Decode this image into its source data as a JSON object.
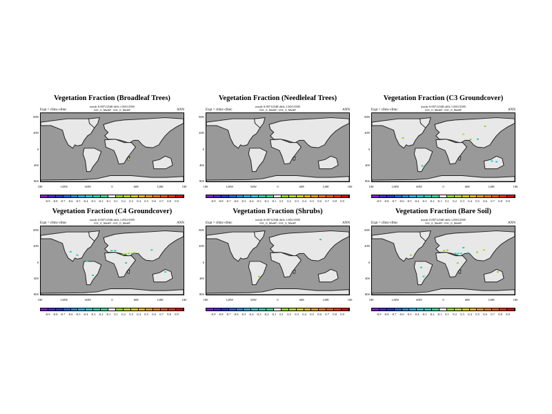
{
  "chart_data": {
    "type": "heatmap",
    "expt_label": "Expt = cllmc-cllmc",
    "stats_line": "rmsdc 0.00712548 diffs 1.00113585",
    "case_line": "031_0_MeSP - 031_0_MeSP",
    "season": "ANN",
    "lat_ticks": [
      "80N",
      "40N",
      "0",
      "40S",
      "80S"
    ],
    "lat_values": [
      80,
      40,
      0,
      -40,
      -80
    ],
    "lon_ticks": [
      "180",
      "120W",
      "60W",
      "0",
      "60E",
      "120E",
      "180"
    ],
    "lon_values": [
      -180,
      -120,
      -60,
      0,
      60,
      120,
      180
    ],
    "colorbar_labels": [
      "-0.9",
      "-0.8",
      "-0.7",
      "-0.6",
      "-0.5",
      "-0.4",
      "-0.3",
      "-0.2",
      "-0.1",
      "0.1",
      "0.2",
      "0.3",
      "0.4",
      "0.5",
      "0.6",
      "0.7",
      "0.8",
      "0.9"
    ],
    "colorbar_colors": [
      "#7a1fd0",
      "#4a22dc",
      "#2236d2",
      "#1e64e0",
      "#1a8ee0",
      "#20b0e0",
      "#20c8d8",
      "#20d0b0",
      "#30d890",
      "#ffffff",
      "#90d820",
      "#b8d820",
      "#d8d000",
      "#e8b800",
      "#e89a00",
      "#e87800",
      "#e85a00",
      "#e83000",
      "#e00000"
    ],
    "land_color": "#e8e8e8",
    "ocean_color": "#999999",
    "panels": [
      {
        "title": "Vegetation Fraction (Broadleaf Trees)",
        "anomalies": [
          {
            "lon": 41.8,
            "lat": -26,
            "value": 0.2
          }
        ]
      },
      {
        "title": "Vegetation Fraction (Needleleaf Trees)",
        "anomalies": []
      },
      {
        "title": "Vegetation Fraction (C3 Groundcover)",
        "anomalies": [
          {
            "lon": 50.4,
            "lat": 38.5,
            "value": 0.3
          },
          {
            "lon": 105,
            "lat": 58.7,
            "value": 0.2
          },
          {
            "lon": 68.8,
            "lat": 25.3,
            "value": 0.15
          },
          {
            "lon": 86.7,
            "lat": 25.9,
            "value": -0.2
          },
          {
            "lon": -102,
            "lat": 28.8,
            "value": 0.2
          },
          {
            "lon": -53.3,
            "lat": -42,
            "value": -0.2
          },
          {
            "lon": 122.4,
            "lat": -29.9,
            "value": -0.3
          },
          {
            "lon": 134,
            "lat": -31.6,
            "value": -0.3
          }
        ]
      },
      {
        "title": "Vegetation Fraction (C4 Groundcover)",
        "anomalies": [
          {
            "lon": -1.4,
            "lat": 30.3,
            "value": -0.2
          },
          {
            "lon": 7.2,
            "lat": 30.3,
            "value": -0.2
          },
          {
            "lon": 27.4,
            "lat": 21.7,
            "value": 0.2
          },
          {
            "lon": 34,
            "lat": 22,
            "value": 0.2
          },
          {
            "lon": 41.8,
            "lat": 22.8,
            "value": 0.2
          },
          {
            "lon": 50,
            "lat": 23.5,
            "value": 0.2
          },
          {
            "lon": 56.2,
            "lat": 24.6,
            "value": 0.2
          },
          {
            "lon": 99.4,
            "lat": 32,
            "value": -0.2
          },
          {
            "lon": 34.8,
            "lat": -1.1,
            "value": -0.2
          },
          {
            "lon": -63,
            "lat": 3.4,
            "value": -0.2
          },
          {
            "lon": -48.7,
            "lat": -32.6,
            "value": -0.2
          },
          {
            "lon": 134,
            "lat": -24,
            "value": -0.2
          },
          {
            "lon": -105,
            "lat": 27.4,
            "value": -0.2
          },
          {
            "lon": -88,
            "lat": 18.8,
            "value": -0.2
          }
        ]
      },
      {
        "title": "Vegetation Fraction (Shrubs)",
        "anomalies": [
          {
            "lon": 107.6,
            "lat": 58.5,
            "value": -0.2
          },
          {
            "lon": -47,
            "lat": -36,
            "value": 0.2
          }
        ]
      },
      {
        "title": "Vegetation Fraction (Bare Soil)",
        "anomalies": [
          {
            "lon": 1.4,
            "lat": 30.3,
            "value": 0.2
          },
          {
            "lon": 10,
            "lat": 31.4,
            "value": 0.2
          },
          {
            "lon": 50.4,
            "lat": 37.7,
            "value": -0.3
          },
          {
            "lon": 30.2,
            "lat": 22.8,
            "value": -0.2
          },
          {
            "lon": 37,
            "lat": 22.8,
            "value": -0.2
          },
          {
            "lon": 44.6,
            "lat": 22.8,
            "value": -0.2
          },
          {
            "lon": 61.9,
            "lat": 24.6,
            "value": -0.2
          },
          {
            "lon": 85,
            "lat": 26.3,
            "value": 0.2
          },
          {
            "lon": 102,
            "lat": 32,
            "value": 0.3
          },
          {
            "lon": 36,
            "lat": -1.1,
            "value": 0.2
          },
          {
            "lon": -82,
            "lat": 18.8,
            "value": 0.2
          },
          {
            "lon": -56,
            "lat": -12.6,
            "value": -0.2
          },
          {
            "lon": -50,
            "lat": -35.4,
            "value": -0.2
          },
          {
            "lon": 136.8,
            "lat": -24,
            "value": 0.2
          }
        ]
      }
    ]
  }
}
